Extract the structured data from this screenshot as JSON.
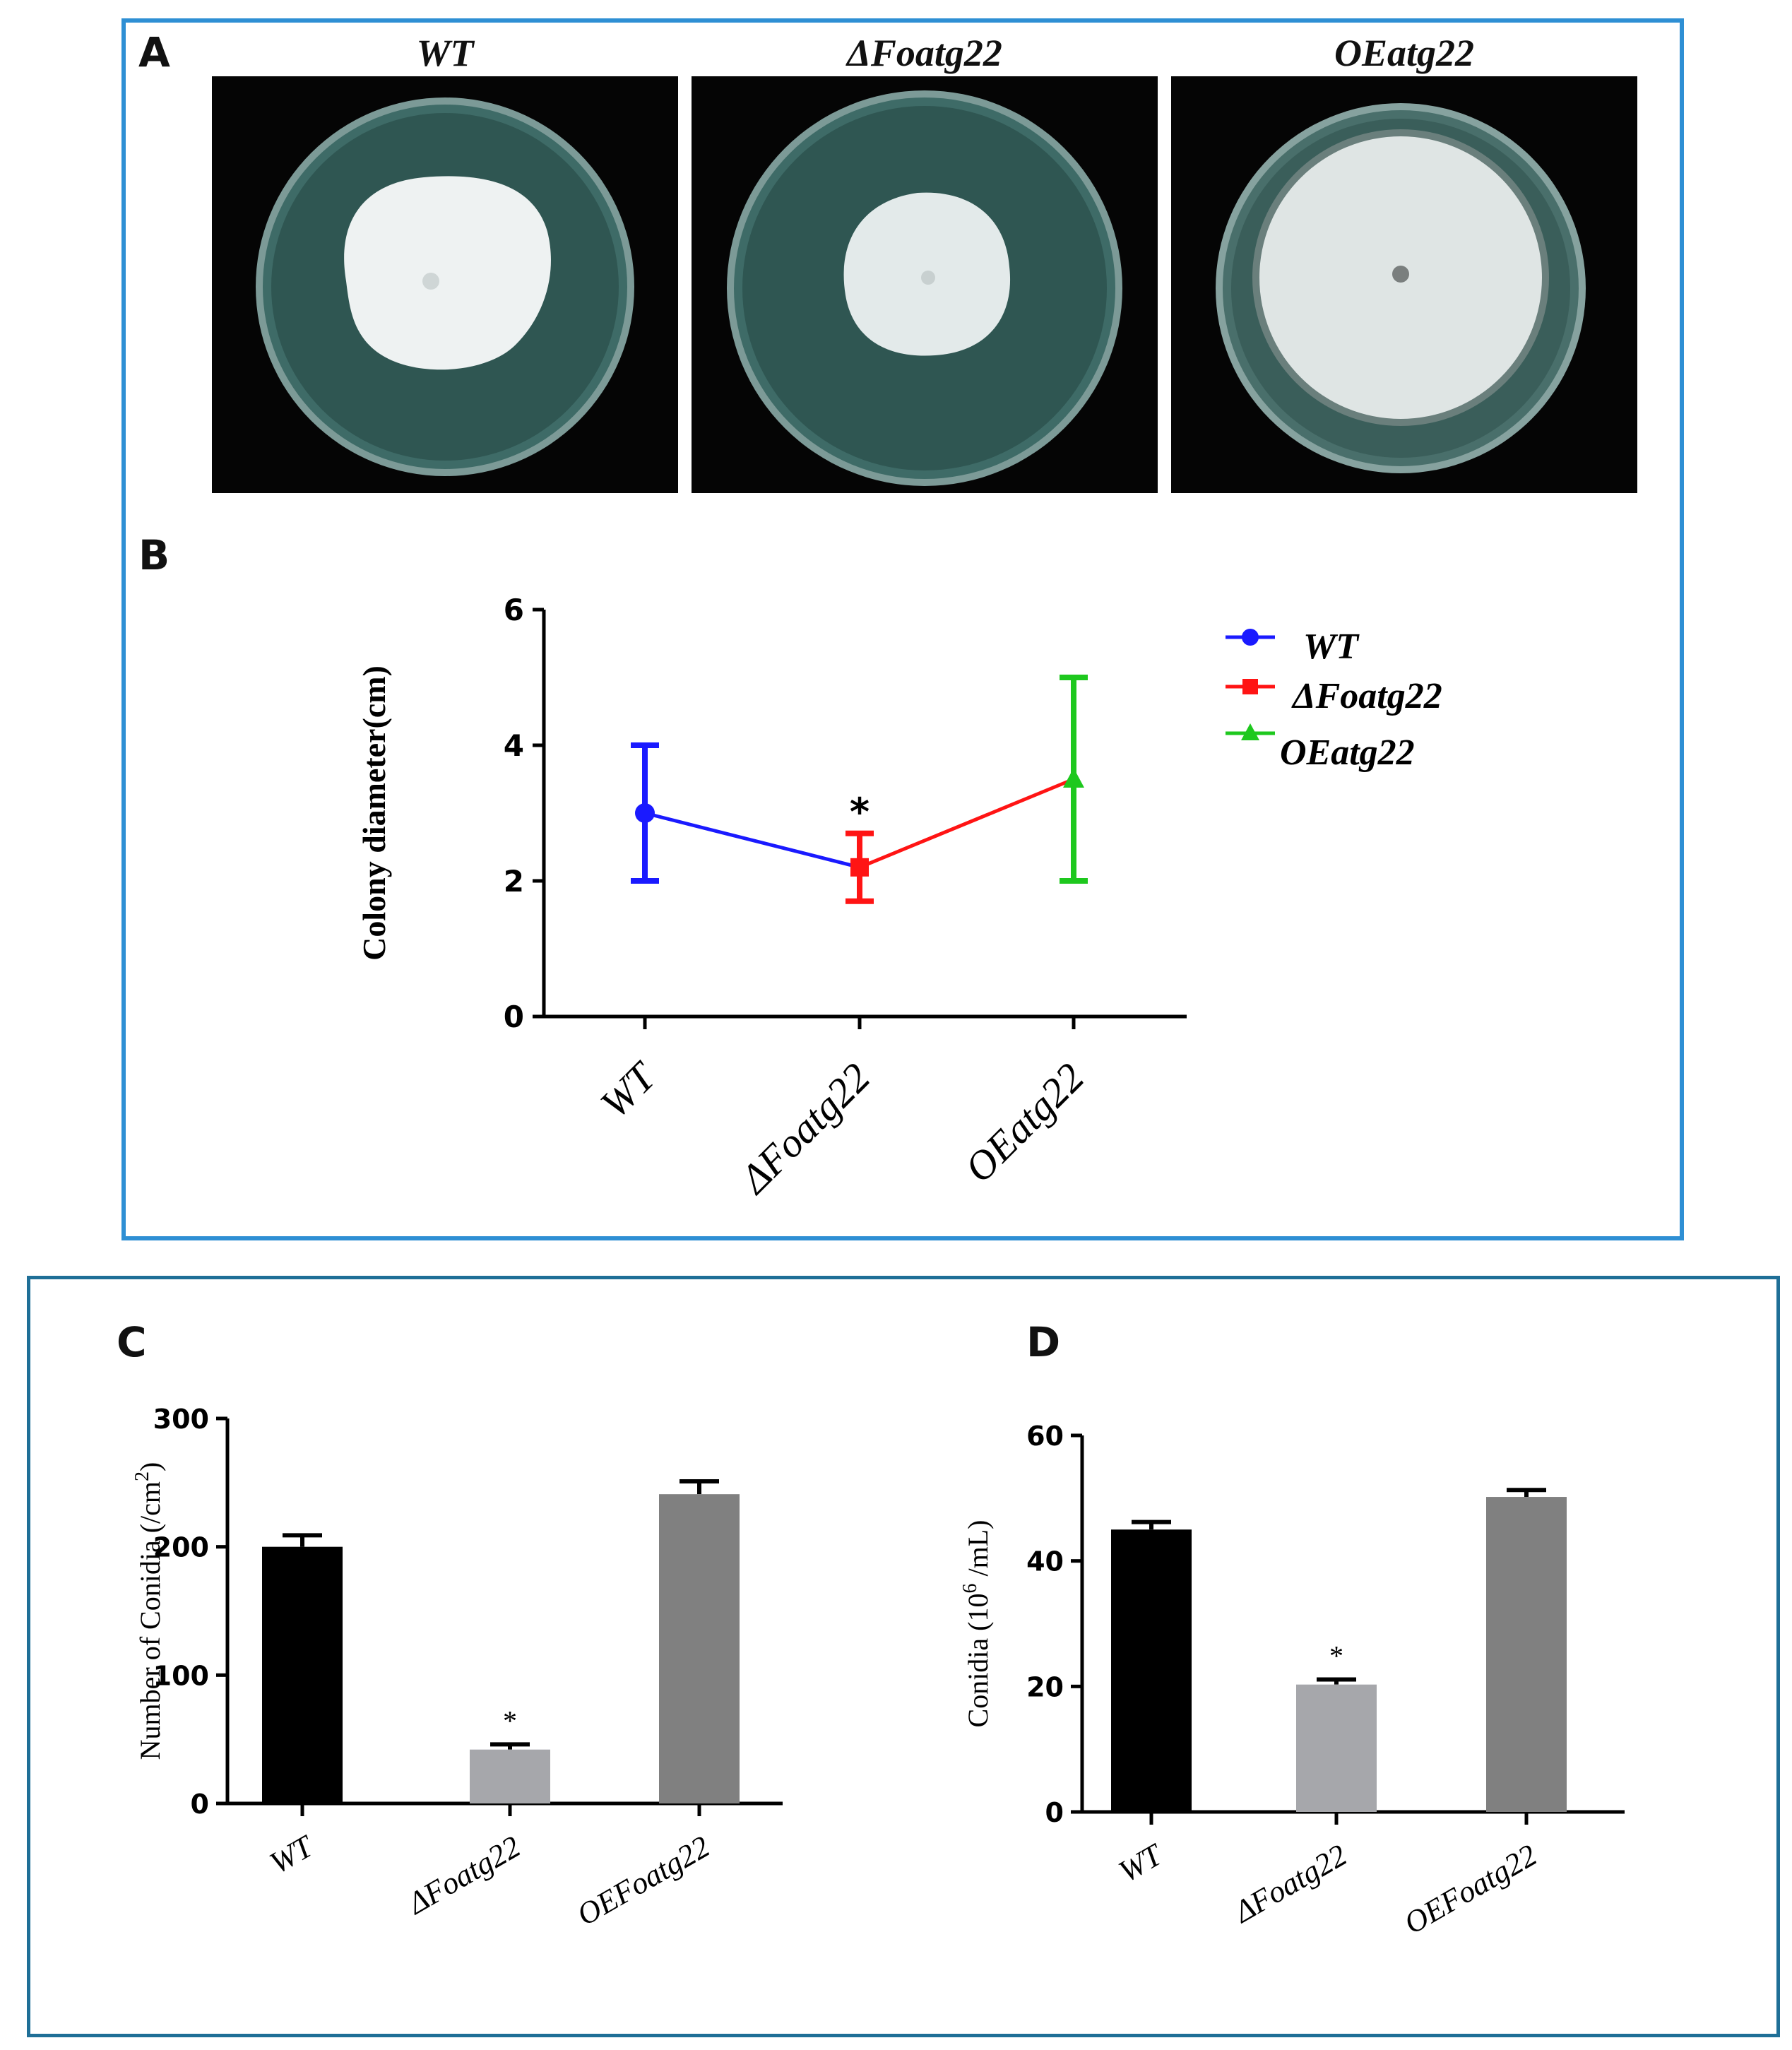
{
  "panels": {
    "A": {
      "letter": "A",
      "plates": [
        {
          "title": "WT"
        },
        {
          "title": "ΔFoatg22"
        },
        {
          "title": "OEatg22"
        }
      ]
    },
    "B": {
      "letter": "B"
    },
    "C": {
      "letter": "C"
    },
    "D": {
      "letter": "D"
    }
  },
  "colors": {
    "frame_top": "#2e8fd4",
    "frame_bottom": "#1f6f97",
    "plate_background": "#050505",
    "agar": "#3d6a66",
    "colony": "#e9eeee"
  },
  "chart_data": [
    {
      "id": "B",
      "type": "line",
      "title": "",
      "xlabel": "",
      "ylabel": "Colony diameter(cm)",
      "categories": [
        "WT",
        "ΔFoatg22",
        "OEatg22"
      ],
      "ylim": [
        0,
        6
      ],
      "yticks": [
        0,
        2,
        4,
        6
      ],
      "legend_position": "right",
      "series": [
        {
          "name": "WT",
          "color": "#1a1aff",
          "marker": "circle",
          "category": "WT",
          "value": 3.0,
          "error_low": 2.0,
          "error_high": 4.0
        },
        {
          "name": "ΔFoatg22",
          "color": "#ff1414",
          "marker": "square",
          "category": "ΔFoatg22",
          "value": 2.2,
          "error_low": 1.7,
          "error_high": 2.7,
          "annotation": "*"
        },
        {
          "name": "OEatg22",
          "color": "#1ec81e",
          "marker": "triangle",
          "category": "OEatg22",
          "value": 3.5,
          "error_low": 2.0,
          "error_high": 5.0
        }
      ]
    },
    {
      "id": "C",
      "type": "bar",
      "title": "",
      "xlabel": "",
      "ylabel": "Number of Conidia (/cm",
      "ylabel_sup": "2",
      "ylabel_end": ")",
      "categories": [
        "WT",
        "ΔFoatg22",
        "OEFoatg22"
      ],
      "values": [
        200,
        42,
        241
      ],
      "errors": [
        9,
        4,
        10
      ],
      "bar_colors": [
        "#000000",
        "#a6a7ab",
        "#808080"
      ],
      "annotations": [
        "",
        "*",
        ""
      ],
      "ylim": [
        0,
        300
      ],
      "yticks": [
        0,
        100,
        200,
        300
      ]
    },
    {
      "id": "D",
      "type": "bar",
      "title": "",
      "xlabel": "",
      "ylabel": "Conidia (10",
      "ylabel_sup": "6",
      "ylabel_end": " /mL)",
      "categories": [
        "WT",
        "ΔFoatg22",
        "OEFoatg22"
      ],
      "values": [
        45,
        20.3,
        50.2
      ],
      "errors": [
        1.2,
        0.8,
        1.1
      ],
      "bar_colors": [
        "#000000",
        "#a6a7ab",
        "#808080"
      ],
      "annotations": [
        "",
        "*",
        ""
      ],
      "ylim": [
        0,
        60
      ],
      "yticks": [
        0,
        20,
        40,
        60
      ]
    }
  ]
}
